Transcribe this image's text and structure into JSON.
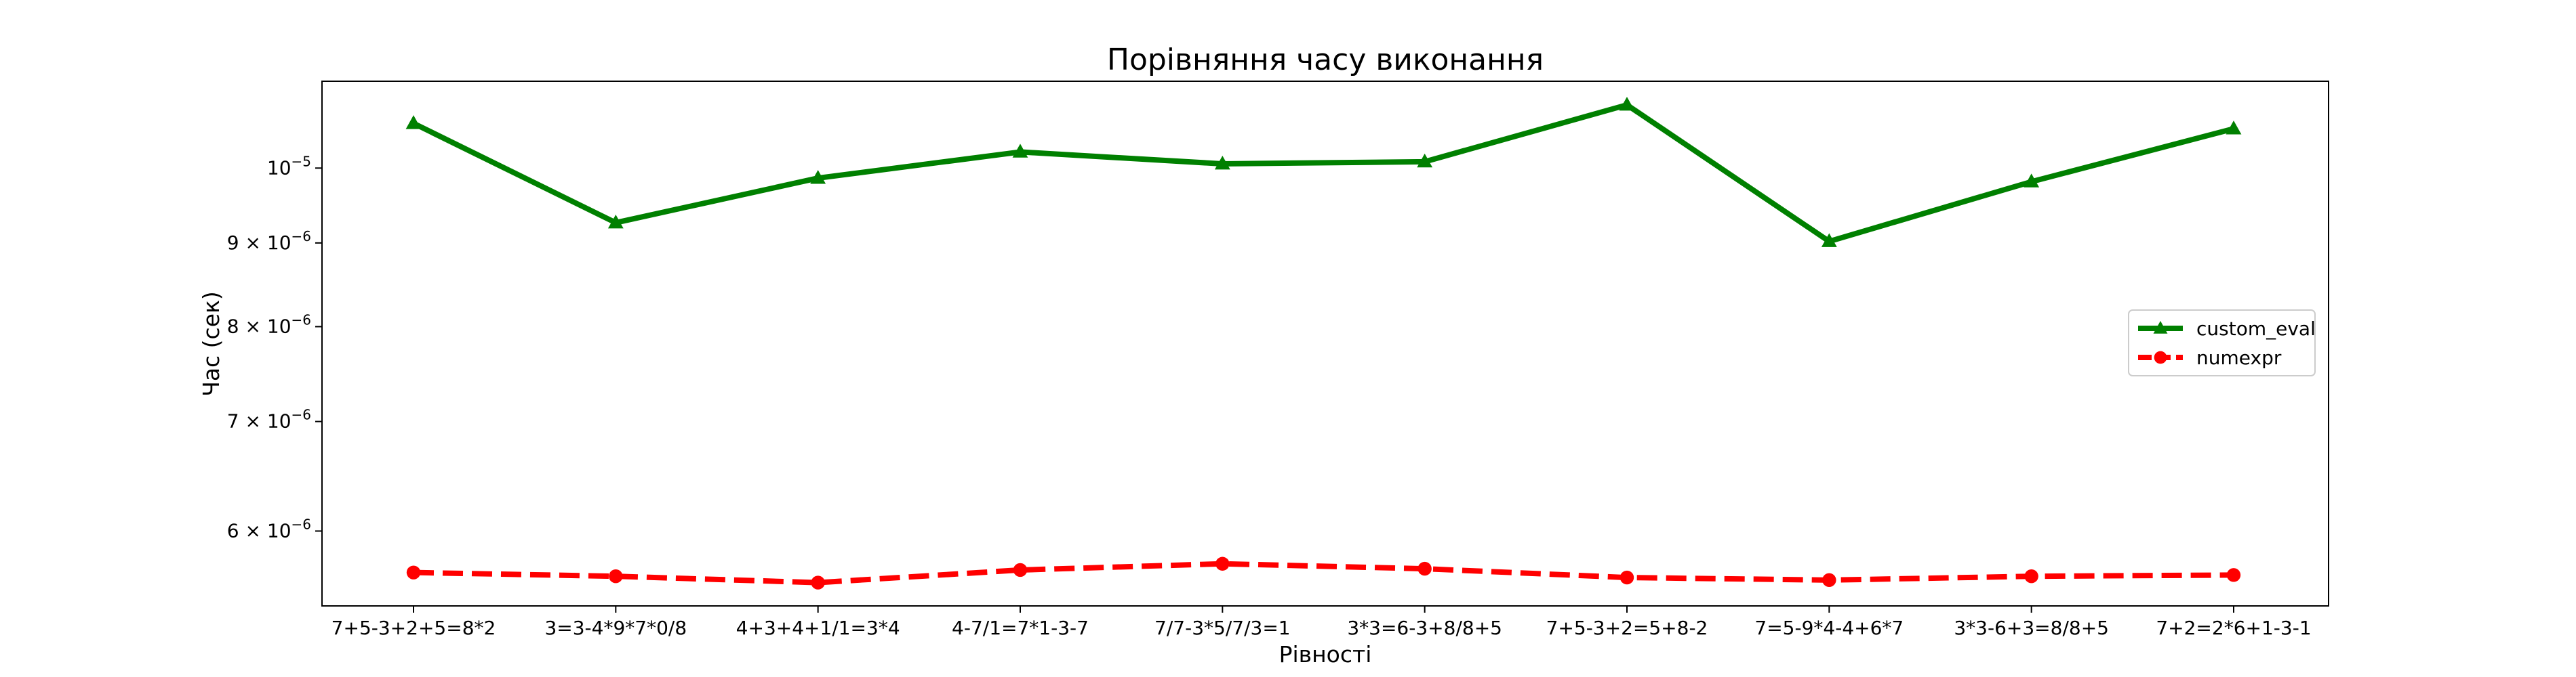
{
  "chart_data": {
    "type": "line",
    "title": "Порівняння часу виконання",
    "xlabel": "Рівності",
    "ylabel": "Час (сек)",
    "y_scale": "log",
    "ylim": [
      5.4e-06,
      1.13e-05
    ],
    "grid": false,
    "legend_position": "right",
    "categories": [
      "7+5-3+2+5=8*2",
      "3=3-4*9*7*0/8",
      "4+3+4+1/1=3*4",
      "4-7/1=7*1-3-7",
      "7/7-3*5/7/3=1",
      "3*3=6-3+8/8+5",
      "7+5-3+2=5+8-2",
      "7=5-9*4-4+6*7",
      "3*3-6+3=8/8+5",
      "7+2=2*6+1-3-1"
    ],
    "y_ticks": [
      {
        "value": 6e-06,
        "mantissa": "6",
        "base": "10",
        "exp": "−6"
      },
      {
        "value": 7e-06,
        "mantissa": "7",
        "base": "10",
        "exp": "−6"
      },
      {
        "value": 8e-06,
        "mantissa": "8",
        "base": "10",
        "exp": "−6"
      },
      {
        "value": 9e-06,
        "mantissa": "9",
        "base": "10",
        "exp": "−6"
      },
      {
        "value": 1e-05,
        "mantissa": "",
        "base": "10",
        "exp": "−5"
      }
    ],
    "series": [
      {
        "name": "custom_eval",
        "color": "#008000",
        "line_style": "solid",
        "marker": "triangle",
        "values": [
          1.065e-05,
          9.26e-06,
          9.86e-06,
          1.023e-05,
          1.006e-05,
          1.009e-05,
          1.093e-05,
          9.02e-06,
          9.81e-06,
          1.057e-05
        ]
      },
      {
        "name": "numexpr",
        "color": "#ff0000",
        "line_style": "dashed",
        "marker": "circle",
        "values": [
          5.66e-06,
          5.63e-06,
          5.58e-06,
          5.68e-06,
          5.73e-06,
          5.69e-06,
          5.62e-06,
          5.6e-06,
          5.63e-06,
          5.64e-06
        ]
      }
    ]
  }
}
